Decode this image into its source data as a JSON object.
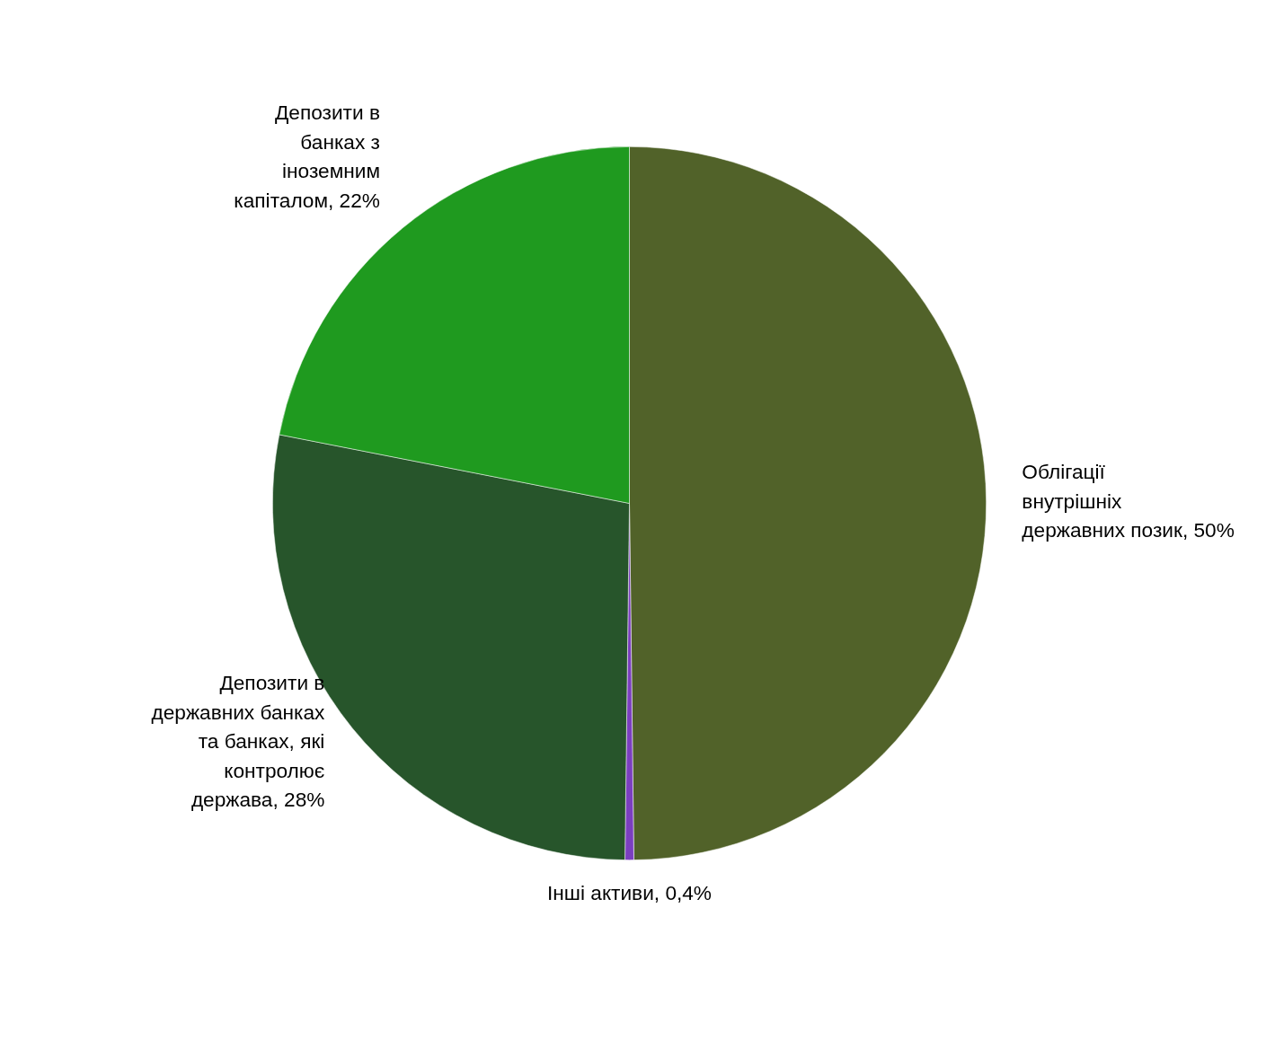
{
  "chart_data": {
    "type": "pie",
    "categories": [
      "Облігації внутрішніх державних позик",
      "Інші активи",
      "Депозити в державних банках та банках, які контролює держава",
      "Депозити в банках з іноземним капіталом"
    ],
    "values": [
      50,
      0.4,
      28,
      22
    ],
    "value_labels": [
      "50%",
      "0,4%",
      "28%",
      "22%"
    ],
    "colors": [
      "#516229",
      "#7b3fbf",
      "#27552b",
      "#1f9a1f"
    ]
  }
}
